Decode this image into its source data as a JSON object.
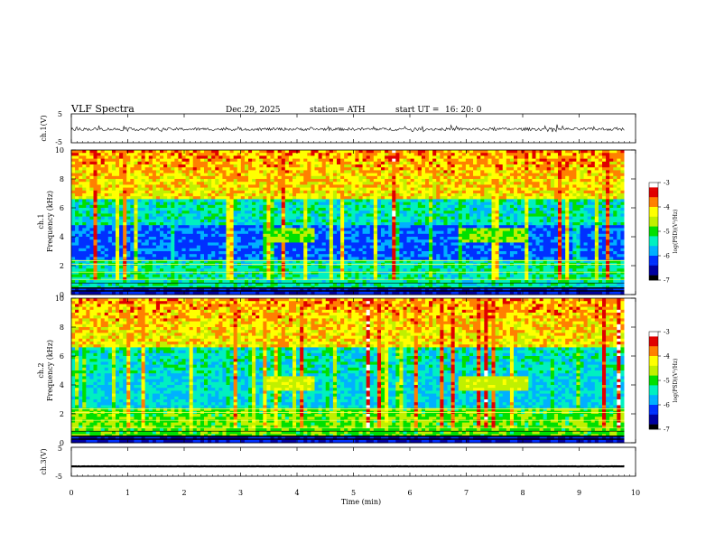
{
  "header": {
    "title": "VLF  Spectra",
    "date": "Dec.29, 2025",
    "station": "station= ATH",
    "start_label": "start  UT  =",
    "start_time": "16: 20: 0"
  },
  "chart_data": [
    {
      "type": "line",
      "panel": "ch1-waveform",
      "ylabel": "ch.1(V)",
      "yticks": [
        "5",
        "-5"
      ],
      "ylim": [
        -5,
        5
      ],
      "baseline": -0.3,
      "amplitude": 0.5
    },
    {
      "type": "heatmap",
      "panel": "ch1-spectrogram",
      "ylabel_top": "ch.1",
      "ylabel": "Frequency  (kHz)",
      "yticks": [
        "0",
        "2",
        "4",
        "6",
        "8",
        "10"
      ],
      "ylim": [
        0,
        10
      ],
      "xlim": [
        0,
        10
      ],
      "colorbar": {
        "ticks": [
          "-3",
          "-4",
          "-5",
          "-6",
          "-7"
        ],
        "range": [
          -7,
          -3
        ],
        "label": "log(PSD)(V²/Hz)"
      },
      "bursts": [
        {
          "t_start": 3.4,
          "t_end": 4.3,
          "f_low": 3.7,
          "f_high": 4.5
        },
        {
          "t_start": 6.85,
          "t_end": 8.1,
          "f_low": 3.7,
          "f_high": 4.5
        }
      ]
    },
    {
      "type": "heatmap",
      "panel": "ch2-spectrogram",
      "ylabel_top": "ch.2",
      "ylabel": "Frequency  (kHz)",
      "yticks": [
        "0",
        "2",
        "4",
        "6",
        "8",
        "10"
      ],
      "ylim": [
        0,
        10
      ],
      "xlim": [
        0,
        10
      ],
      "colorbar": {
        "ticks": [
          "-3",
          "-4",
          "-5",
          "-6",
          "-7"
        ],
        "range": [
          -7,
          -3
        ],
        "label": "log(PSD)(V²/Hz)"
      },
      "bursts": [
        {
          "t_start": 3.4,
          "t_end": 4.3,
          "f_low": 3.7,
          "f_high": 4.5
        },
        {
          "t_start": 6.85,
          "t_end": 8.1,
          "f_low": 3.7,
          "f_high": 4.5
        }
      ]
    },
    {
      "type": "line",
      "panel": "ch3-waveform",
      "ylabel": "ch.3(V)",
      "yticks": [
        "5",
        "-5"
      ],
      "ylim": [
        -5,
        5
      ],
      "baseline": -1.6,
      "amplitude": 0.15
    }
  ],
  "xaxis": {
    "label": "Time  (min)",
    "ticks": [
      "0",
      "1",
      "2",
      "3",
      "4",
      "5",
      "6",
      "7",
      "8",
      "9",
      "10"
    ],
    "range": [
      0,
      10
    ],
    "data_end": 9.8
  },
  "colors": {
    "colormap": [
      "#000000",
      "#0000a0",
      "#0030ff",
      "#00b0ff",
      "#00f0c0",
      "#00e000",
      "#c0f000",
      "#ffff00",
      "#ff8000",
      "#e00000",
      "#ffffff"
    ]
  }
}
